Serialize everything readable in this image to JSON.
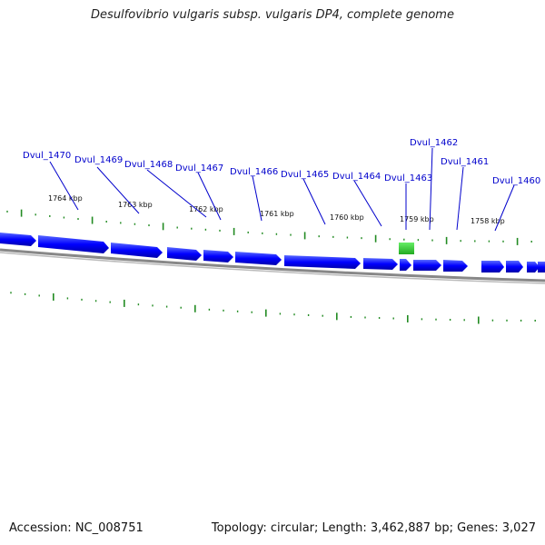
{
  "title": "Desulfovibrio vulgaris subsp. vulgaris DP4, complete genome",
  "footer": {
    "accession": "Accession: NC_008751",
    "stats": "Topology: circular; Length: 3,462,887 bp; Genes: 3,027"
  },
  "colors": {
    "gene_fill": "#0000ff",
    "gene_highlight": "#33cc33",
    "label": "#0000cc",
    "tick": "#228b22",
    "backbone": "#888888"
  },
  "genes": [
    {
      "id": "Dvul_1470"
    },
    {
      "id": "Dvul_1469"
    },
    {
      "id": "Dvul_1468"
    },
    {
      "id": "Dvul_1467"
    },
    {
      "id": "Dvul_1466"
    },
    {
      "id": "Dvul_1465"
    },
    {
      "id": "Dvul_1464"
    },
    {
      "id": "Dvul_1463"
    },
    {
      "id": "Dvul_1462"
    },
    {
      "id": "Dvul_1461"
    },
    {
      "id": "Dvul_1460"
    }
  ],
  "kbp_labels": [
    "1764 kbp",
    "1763 kbp",
    "1762 kbp",
    "1761 kbp",
    "1760 kbp",
    "1759 kbp",
    "1758 kbp"
  ]
}
